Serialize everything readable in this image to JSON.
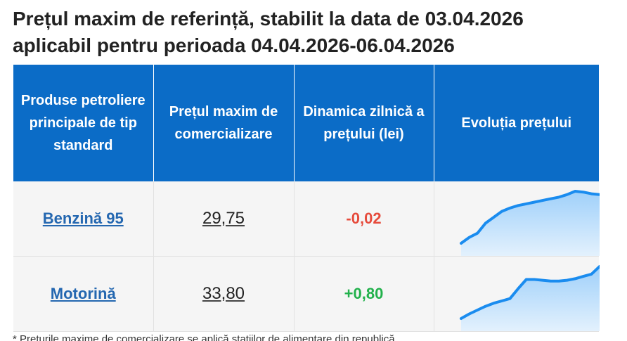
{
  "title": {
    "line1": "Prețul maxim de referință, stabilit la data de 03.04.2026",
    "line2": "aplicabil pentru perioada 04.04.2026-06.04.2026"
  },
  "table": {
    "headers": {
      "product": "Produse petroliere principale de tip standard",
      "price": "Prețul maxim de comercializare",
      "dynamics": "Dinamica zilnică a prețului (lei)",
      "evolution": "Evoluția prețului"
    },
    "rows": [
      {
        "product": "Benzină 95",
        "price": "29,75",
        "dynamics": "-0,02",
        "trend": "negative",
        "sparkline": [
          15.2,
          15.9,
          16.4,
          17.6,
          18.3,
          19.0,
          19.4,
          19.7,
          19.9,
          20.1,
          20.3,
          20.5,
          20.7,
          21.0,
          21.4,
          21.3,
          21.1,
          21.0
        ]
      },
      {
        "product": "Motorină",
        "price": "33,80",
        "dynamics": "+0,80",
        "trend": "positive",
        "sparkline": [
          15.0,
          15.6,
          16.1,
          16.6,
          17.0,
          17.3,
          17.6,
          18.9,
          20.1,
          20.1,
          20.0,
          19.9,
          19.9,
          20.0,
          20.2,
          20.5,
          20.8,
          21.8
        ]
      }
    ]
  },
  "colors": {
    "header_bg": "#0b6cc7",
    "link": "#2467b0",
    "negative": "#e64b3c",
    "positive": "#22b14c",
    "spark_line": "#1a8cef",
    "spark_fill": "#9fd0fa"
  },
  "footnote": "* Prețurile maxime de comercializare se aplică stațiilor de alimentare din republică"
}
